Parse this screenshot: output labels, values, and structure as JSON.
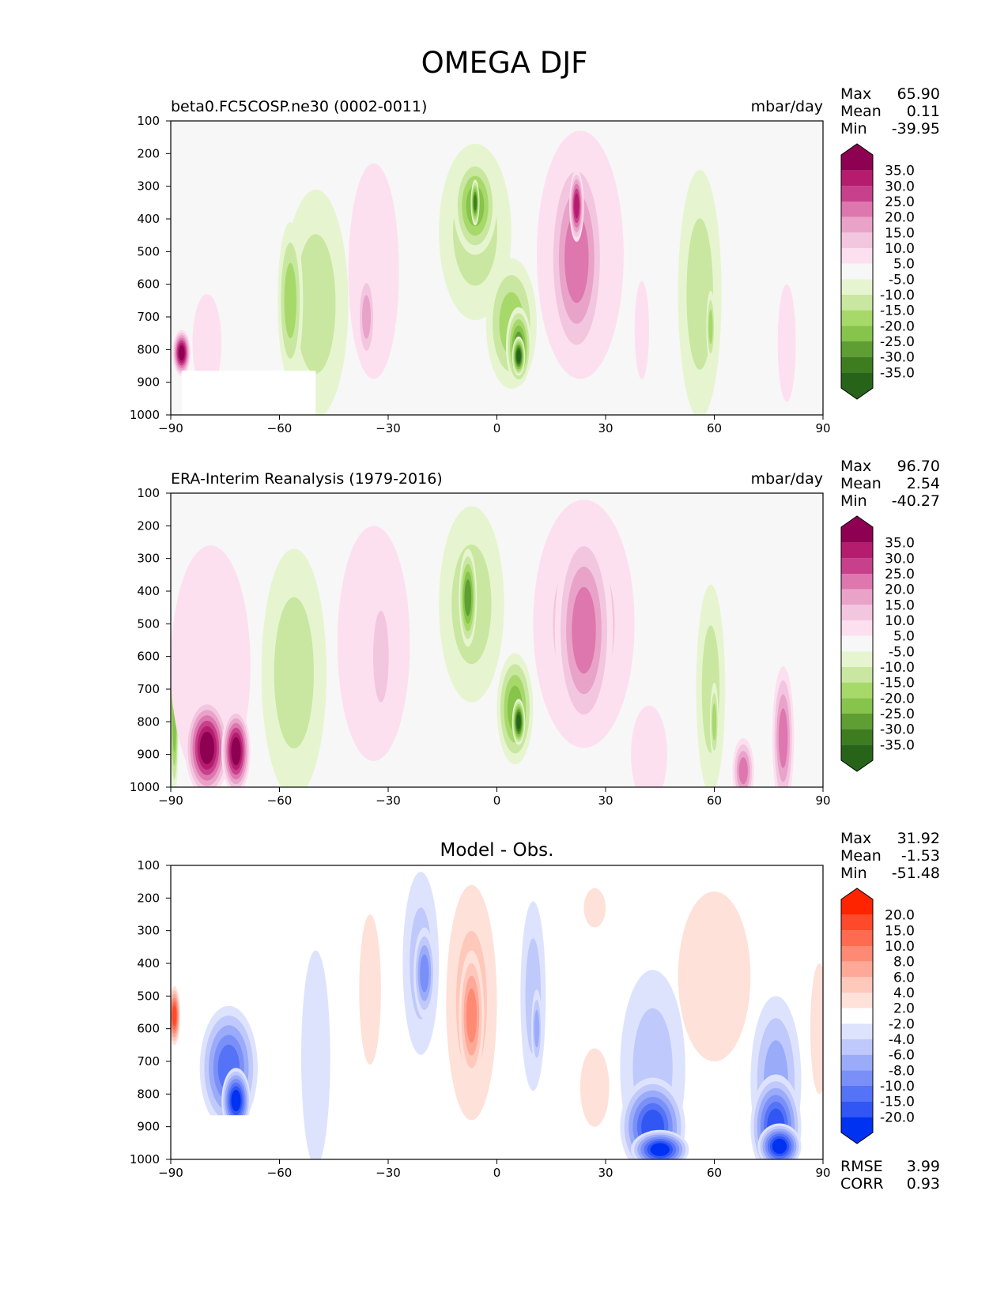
{
  "title": "OMEGA DJF",
  "chart_data": [
    {
      "type": "heatmap",
      "title": "beta0.FC5COSP.ne30 (0002-0011)",
      "units": "mbar/day",
      "x_ticks": [
        "−90",
        "−60",
        "−30",
        "0",
        "30",
        "60",
        "90"
      ],
      "x_values": [
        -90,
        -60,
        -30,
        0,
        30,
        60,
        90
      ],
      "y_ticks": [
        "100",
        "200",
        "300",
        "400",
        "500",
        "600",
        "700",
        "800",
        "900",
        "1000"
      ],
      "y_values": [
        100,
        200,
        300,
        400,
        500,
        600,
        700,
        800,
        900,
        1000
      ],
      "xlim": [
        -90,
        90
      ],
      "ylim": [
        1000,
        100
      ],
      "stats": [
        {
          "label": "Max",
          "value": "65.90"
        },
        {
          "label": "Mean",
          "value": "0.11"
        },
        {
          "label": "Min",
          "value": "-39.95"
        }
      ],
      "colorbar_labels": [
        "35.0",
        "30.0",
        "25.0",
        "20.0",
        "15.0",
        "10.0",
        "5.0",
        "-5.0",
        "-10.0",
        "-15.0",
        "-20.0",
        "-25.0",
        "-30.0",
        "-35.0"
      ],
      "colorbar_colors": [
        "#8e0152",
        "#b51c6e",
        "#c7408b",
        "#de77ae",
        "#e9a3c9",
        "#f3c6e0",
        "#fde0ef",
        "#f7f7f7",
        "#e6f5d0",
        "#c9e7a0",
        "#a6d96a",
        "#86c44b",
        "#5f9e32",
        "#3d7d20",
        "#276419"
      ],
      "masked_region": {
        "x": [
          -87,
          -50
        ],
        "y": [
          865,
          1000
        ]
      },
      "features": [
        {
          "x": -87,
          "y": 810,
          "v": 45,
          "rx": 2.5,
          "ry": 70
        },
        {
          "x": -80,
          "y": 780,
          "v": 6,
          "rx": 4,
          "ry": 150
        },
        {
          "x": -50,
          "y": 660,
          "v": -11,
          "rx": 9,
          "ry": 350
        },
        {
          "x": -57,
          "y": 650,
          "v": -19,
          "rx": 3.5,
          "ry": 240
        },
        {
          "x": -34,
          "y": 560,
          "v": 8,
          "rx": 7,
          "ry": 330
        },
        {
          "x": -36,
          "y": 700,
          "v": 18,
          "rx": 2.5,
          "ry": 140
        },
        {
          "x": -6,
          "y": 440,
          "v": -13,
          "rx": 10,
          "ry": 270
        },
        {
          "x": -6,
          "y": 360,
          "v": -22,
          "rx": 6,
          "ry": 150
        },
        {
          "x": -6,
          "y": 350,
          "v": -33,
          "rx": 1.2,
          "ry": 70
        },
        {
          "x": 4,
          "y": 720,
          "v": -15,
          "rx": 7,
          "ry": 200
        },
        {
          "x": 6,
          "y": 790,
          "v": -28,
          "rx": 3.5,
          "ry": 120
        },
        {
          "x": 6,
          "y": 820,
          "v": -38,
          "rx": 1.8,
          "ry": 60
        },
        {
          "x": 23,
          "y": 510,
          "v": 9,
          "rx": 12,
          "ry": 380
        },
        {
          "x": 22,
          "y": 520,
          "v": 21,
          "rx": 8,
          "ry": 330
        },
        {
          "x": 22,
          "y": 360,
          "v": 32,
          "rx": 2,
          "ry": 110
        },
        {
          "x": 40,
          "y": 740,
          "v": 6,
          "rx": 2,
          "ry": 150
        },
        {
          "x": 56,
          "y": 630,
          "v": -11,
          "rx": 6,
          "ry": 380
        },
        {
          "x": 59,
          "y": 730,
          "v": -19,
          "rx": 1.2,
          "ry": 110
        },
        {
          "x": 80,
          "y": 780,
          "v": 6,
          "rx": 2.5,
          "ry": 180
        }
      ]
    },
    {
      "type": "heatmap",
      "title": "ERA-Interim Reanalysis (1979-2016)",
      "units": "mbar/day",
      "x_ticks": [
        "−90",
        "−60",
        "−30",
        "0",
        "30",
        "60",
        "90"
      ],
      "x_values": [
        -90,
        -60,
        -30,
        0,
        30,
        60,
        90
      ],
      "y_ticks": [
        "100",
        "200",
        "300",
        "400",
        "500",
        "600",
        "700",
        "800",
        "900",
        "1000"
      ],
      "y_values": [
        100,
        200,
        300,
        400,
        500,
        600,
        700,
        800,
        900,
        1000
      ],
      "xlim": [
        -90,
        90
      ],
      "ylim": [
        1000,
        100
      ],
      "stats": [
        {
          "label": "Max",
          "value": "96.70"
        },
        {
          "label": "Mean",
          "value": "2.54"
        },
        {
          "label": "Min",
          "value": "-40.27"
        }
      ],
      "colorbar_labels": [
        "35.0",
        "30.0",
        "25.0",
        "20.0",
        "15.0",
        "10.0",
        "5.0",
        "-5.0",
        "-10.0",
        "-15.0",
        "-20.0",
        "-25.0",
        "-30.0",
        "-35.0"
      ],
      "colorbar_colors": [
        "#8e0152",
        "#b51c6e",
        "#c7408b",
        "#de77ae",
        "#e9a3c9",
        "#f3c6e0",
        "#fde0ef",
        "#f7f7f7",
        "#e6f5d0",
        "#c9e7a0",
        "#a6d96a",
        "#86c44b",
        "#5f9e32",
        "#3d7d20",
        "#276419"
      ],
      "masked_region": null,
      "features": [
        {
          "x": -89,
          "y": 800,
          "v": -20,
          "rx": 1.2,
          "ry": 220
        },
        {
          "x": -79,
          "y": 630,
          "v": 7,
          "rx": 11,
          "ry": 370
        },
        {
          "x": -80,
          "y": 880,
          "v": 42,
          "rx": 6,
          "ry": 150
        },
        {
          "x": -72,
          "y": 890,
          "v": 42,
          "rx": 4,
          "ry": 130
        },
        {
          "x": -56,
          "y": 650,
          "v": -11,
          "rx": 9,
          "ry": 380
        },
        {
          "x": -34,
          "y": 560,
          "v": 7,
          "rx": 10,
          "ry": 360
        },
        {
          "x": -32,
          "y": 600,
          "v": 12,
          "rx": 3.5,
          "ry": 230
        },
        {
          "x": -7,
          "y": 440,
          "v": -14,
          "rx": 9,
          "ry": 300
        },
        {
          "x": -8,
          "y": 420,
          "v": -27,
          "rx": 2.5,
          "ry": 150
        },
        {
          "x": 5,
          "y": 760,
          "v": -22,
          "rx": 5,
          "ry": 170
        },
        {
          "x": 6,
          "y": 800,
          "v": -38,
          "rx": 1.8,
          "ry": 70
        },
        {
          "x": 24,
          "y": 500,
          "v": 11,
          "rx": 14,
          "ry": 380
        },
        {
          "x": 24,
          "y": 520,
          "v": 22,
          "rx": 8,
          "ry": 320
        },
        {
          "x": 42,
          "y": 900,
          "v": 9,
          "rx": 5,
          "ry": 150
        },
        {
          "x": 59,
          "y": 700,
          "v": -12,
          "rx": 4,
          "ry": 320
        },
        {
          "x": 60,
          "y": 800,
          "v": -19,
          "rx": 1.2,
          "ry": 120
        },
        {
          "x": 68,
          "y": 950,
          "v": 25,
          "rx": 3,
          "ry": 100
        },
        {
          "x": 79,
          "y": 850,
          "v": 22,
          "rx": 3,
          "ry": 220
        }
      ]
    },
    {
      "type": "heatmap",
      "title": "Model - Obs.",
      "units": "",
      "x_ticks": [
        "−90",
        "−60",
        "−30",
        "0",
        "30",
        "60",
        "90"
      ],
      "x_values": [
        -90,
        -60,
        -30,
        0,
        30,
        60,
        90
      ],
      "y_ticks": [
        "100",
        "200",
        "300",
        "400",
        "500",
        "600",
        "700",
        "800",
        "900",
        "1000"
      ],
      "y_values": [
        100,
        200,
        300,
        400,
        500,
        600,
        700,
        800,
        900,
        1000
      ],
      "xlim": [
        -90,
        90
      ],
      "ylim": [
        1000,
        100
      ],
      "stats": [
        {
          "label": "Max",
          "value": "31.92"
        },
        {
          "label": "Mean",
          "value": "-1.53"
        },
        {
          "label": "Min",
          "value": "-51.48"
        }
      ],
      "metrics": [
        {
          "label": "RMSE",
          "value": "3.99"
        },
        {
          "label": "CORR",
          "value": "0.93"
        }
      ],
      "colorbar_labels": [
        "20.0",
        "15.0",
        "10.0",
        "8.0",
        "6.0",
        "4.0",
        "2.0",
        "-2.0",
        "-4.0",
        "-6.0",
        "-8.0",
        "-10.0",
        "-15.0",
        "-20.0"
      ],
      "colorbar_colors": [
        "#fe2400",
        "#fe4a2b",
        "#fe6b50",
        "#fe8a73",
        "#fea898",
        "#fec8bb",
        "#fee1d9",
        "#ffffff",
        "#dee3fd",
        "#c0c9fb",
        "#9aabfa",
        "#7a90f8",
        "#5573f6",
        "#3156f4",
        "#0032f2"
      ],
      "masked_region": {
        "x": [
          -87,
          -64
        ],
        "y": [
          865,
          1000
        ]
      },
      "features": [
        {
          "x": -89,
          "y": 560,
          "v": 20,
          "rx": 1.6,
          "ry": 90
        },
        {
          "x": -74,
          "y": 720,
          "v": -10,
          "rx": 8,
          "ry": 190
        },
        {
          "x": -72,
          "y": 820,
          "v": -25,
          "rx": 4,
          "ry": 100
        },
        {
          "x": -50,
          "y": 690,
          "v": -3,
          "rx": 4,
          "ry": 330
        },
        {
          "x": -35,
          "y": 480,
          "v": 3,
          "rx": 3,
          "ry": 230
        },
        {
          "x": -21,
          "y": 400,
          "v": -5,
          "rx": 5,
          "ry": 280
        },
        {
          "x": -20,
          "y": 430,
          "v": -9,
          "rx": 3,
          "ry": 140
        },
        {
          "x": -7,
          "y": 520,
          "v": 5,
          "rx": 7,
          "ry": 360
        },
        {
          "x": -7,
          "y": 560,
          "v": 9,
          "rx": 3.5,
          "ry": 200
        },
        {
          "x": 10,
          "y": 500,
          "v": -4.5,
          "rx": 3.5,
          "ry": 290
        },
        {
          "x": 11,
          "y": 600,
          "v": -7,
          "rx": 1.5,
          "ry": 120
        },
        {
          "x": 27,
          "y": 230,
          "v": 3,
          "rx": 3,
          "ry": 60
        },
        {
          "x": 27,
          "y": 780,
          "v": 3,
          "rx": 4,
          "ry": 120
        },
        {
          "x": 43,
          "y": 720,
          "v": -5,
          "rx": 9,
          "ry": 300
        },
        {
          "x": 43,
          "y": 900,
          "v": -15,
          "rx": 9,
          "ry": 150
        },
        {
          "x": 45,
          "y": 970,
          "v": -25,
          "rx": 8,
          "ry": 60
        },
        {
          "x": 60,
          "y": 440,
          "v": 3,
          "rx": 10,
          "ry": 260
        },
        {
          "x": 77,
          "y": 760,
          "v": -6,
          "rx": 7,
          "ry": 260
        },
        {
          "x": 77,
          "y": 900,
          "v": -16,
          "rx": 7,
          "ry": 160
        },
        {
          "x": 78,
          "y": 960,
          "v": -25,
          "rx": 6,
          "ry": 70
        },
        {
          "x": 89,
          "y": 600,
          "v": 4,
          "rx": 2.5,
          "ry": 200
        }
      ]
    }
  ]
}
